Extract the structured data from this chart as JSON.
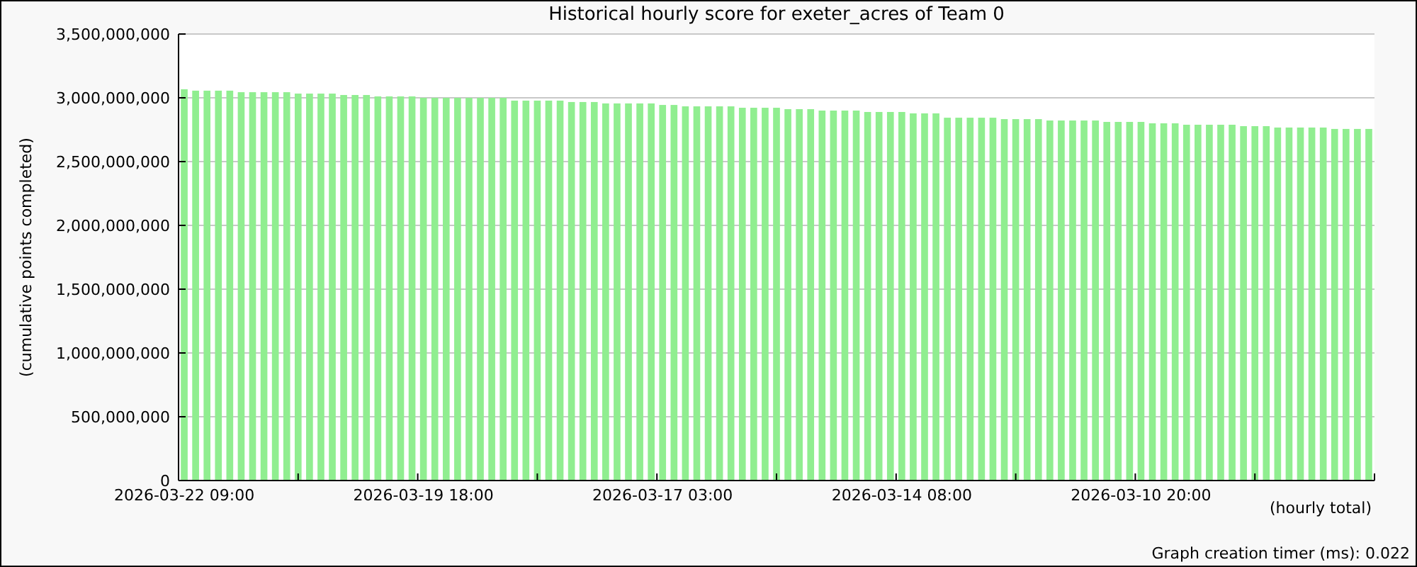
{
  "chart_data": {
    "type": "bar",
    "title": "Historical hourly score for exeter_acres of Team 0",
    "xlabel": "(hourly total)",
    "ylabel": "(cumulative points completed)",
    "annotations": [
      "Graph creation timer (ms): 0.022"
    ],
    "categories": [
      "2026-03-22 09:00",
      null,
      null,
      null,
      null,
      null,
      null,
      null,
      null,
      null,
      null,
      null,
      null,
      null,
      null,
      null,
      null,
      null,
      null,
      null,
      null,
      "2026-03-19 18:00",
      null,
      null,
      null,
      null,
      null,
      null,
      null,
      null,
      null,
      null,
      null,
      null,
      null,
      null,
      null,
      null,
      null,
      null,
      null,
      null,
      "2026-03-17 03:00",
      null,
      null,
      null,
      null,
      null,
      null,
      null,
      null,
      null,
      null,
      null,
      null,
      null,
      null,
      null,
      null,
      null,
      null,
      null,
      null,
      "2026-03-14 08:00",
      null,
      null,
      null,
      null,
      null,
      null,
      null,
      null,
      null,
      null,
      null,
      null,
      null,
      null,
      null,
      null,
      null,
      null,
      null,
      null,
      "2026-03-10 20:00",
      null,
      null,
      null,
      null,
      null,
      null,
      null,
      null,
      null,
      null,
      null,
      null,
      null,
      null,
      null,
      null,
      null,
      null,
      null,
      null
    ],
    "values": [
      3067000000,
      3056000000,
      3056000000,
      3056000000,
      3056000000,
      3044000000,
      3044000000,
      3044000000,
      3044000000,
      3044000000,
      3033000000,
      3033000000,
      3033000000,
      3033000000,
      3022000000,
      3022000000,
      3022000000,
      3011000000,
      3011000000,
      3011000000,
      3011000000,
      3000000000,
      3000000000,
      3000000000,
      3000000000,
      3000000000,
      3000000000,
      3000000000,
      3000000000,
      2978000000,
      2978000000,
      2978000000,
      2978000000,
      2978000000,
      2967000000,
      2967000000,
      2967000000,
      2956000000,
      2956000000,
      2956000000,
      2956000000,
      2956000000,
      2944000000,
      2944000000,
      2933000000,
      2933000000,
      2933000000,
      2933000000,
      2933000000,
      2922000000,
      2922000000,
      2922000000,
      2922000000,
      2911000000,
      2911000000,
      2911000000,
      2900000000,
      2900000000,
      2900000000,
      2900000000,
      2889000000,
      2889000000,
      2889000000,
      2889000000,
      2878000000,
      2878000000,
      2878000000,
      2844000000,
      2844000000,
      2844000000,
      2844000000,
      2844000000,
      2833000000,
      2833000000,
      2833000000,
      2833000000,
      2822000000,
      2822000000,
      2822000000,
      2822000000,
      2822000000,
      2811000000,
      2811000000,
      2811000000,
      2811000000,
      2800000000,
      2800000000,
      2800000000,
      2789000000,
      2789000000,
      2789000000,
      2789000000,
      2789000000,
      2778000000,
      2778000000,
      2778000000,
      2767000000,
      2767000000,
      2767000000,
      2767000000,
      2767000000,
      2756000000,
      2756000000,
      2756000000,
      2756000000
    ],
    "color": "#90ee90",
    "ylim": [
      0,
      3500000000
    ],
    "yticks": [
      {
        "value": 0,
        "label": "0"
      },
      {
        "value": 500000000,
        "label": "500,000,000"
      },
      {
        "value": 1000000000,
        "label": "1,000,000,000"
      },
      {
        "value": 1500000000,
        "label": "1,500,000,000"
      },
      {
        "value": 2000000000,
        "label": "2,000,000,000"
      },
      {
        "value": 2500000000,
        "label": "2,500,000,000"
      },
      {
        "value": 3000000000,
        "label": "3,000,000,000"
      },
      {
        "value": 3500000000,
        "label": "3,500,000,000"
      }
    ],
    "grid": "y"
  }
}
